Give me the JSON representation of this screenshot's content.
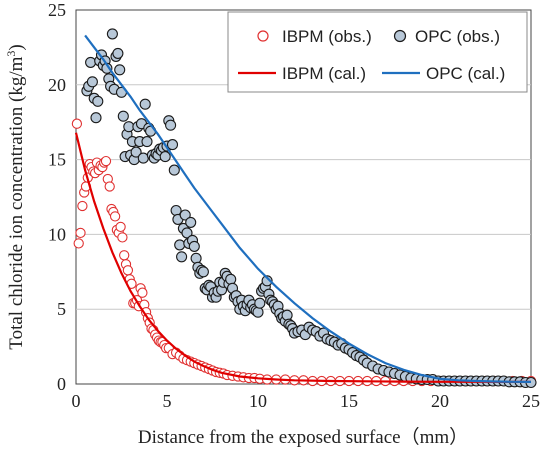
{
  "chart_data": {
    "type": "scatter",
    "xlabel": "Distance from the exposed surface（mm）",
    "ylabel": "Total chloride ion concentration (kg/m",
    "ylabel_sup": "3",
    "ylabel_end": ")",
    "xlim": [
      0,
      25
    ],
    "ylim": [
      0,
      25
    ],
    "xticks": [
      "0",
      "5",
      "10",
      "15",
      "20",
      "25"
    ],
    "yticks": [
      "0",
      "5",
      "10",
      "15",
      "20",
      "25"
    ],
    "grid": "horizontal",
    "legend_position": "top-right",
    "legend": {
      "ibpm_obs": "IBPM (obs.)",
      "opc_obs": "OPC (obs.)",
      "ibpm_cal": "IBPM (cal.)",
      "opc_cal": "OPC (cal.)"
    },
    "colors": {
      "ibpm_obs": "#e03030",
      "opc_obs_fill": "#b8c8d8",
      "opc_obs_edge": "#1a1a1a",
      "ibpm_cal": "#e00000",
      "opc_cal": "#1f6fbf"
    },
    "series": [
      {
        "name": "IBPM (obs.)",
        "kind": "scatter",
        "x": [
          0.05,
          0.15,
          0.25,
          0.35,
          0.45,
          0.55,
          0.65,
          0.75,
          0.85,
          0.95,
          1.05,
          1.15,
          1.25,
          1.35,
          1.45,
          1.55,
          1.65,
          1.75,
          1.85,
          1.95,
          2.05,
          2.15,
          2.25,
          2.35,
          2.45,
          2.55,
          2.65,
          2.75,
          2.85,
          2.95,
          3.05,
          3.15,
          3.25,
          3.35,
          3.45,
          3.55,
          3.65,
          3.75,
          3.85,
          3.95,
          4.05,
          4.15,
          4.25,
          4.35,
          4.45,
          4.55,
          4.65,
          4.75,
          4.85,
          4.95,
          5.1,
          5.3,
          5.5,
          5.7,
          5.9,
          6.1,
          6.3,
          6.5,
          6.7,
          6.9,
          7.1,
          7.3,
          7.5,
          7.7,
          7.9,
          8.1,
          8.3,
          8.6,
          8.9,
          9.2,
          9.5,
          9.8,
          10.1,
          10.5,
          11,
          11.5,
          12,
          12.5,
          13,
          13.5,
          14,
          14.5,
          15,
          15.5,
          16,
          16.5,
          17,
          17.5,
          18,
          18.5,
          19,
          19.5,
          20,
          20.5,
          21,
          21.5,
          22,
          22.5,
          23,
          23.5,
          24,
          24.5,
          25
        ],
        "y": [
          17.4,
          9.4,
          10.1,
          11.9,
          12.8,
          13.2,
          13.8,
          14.7,
          14.5,
          14.2,
          14.1,
          14.8,
          14.3,
          14.6,
          14.5,
          14.8,
          14.9,
          13.7,
          13.2,
          11.7,
          11.5,
          11.2,
          10.3,
          10.1,
          10.5,
          9.8,
          8.6,
          8.0,
          7.6,
          7.0,
          6.7,
          5.4,
          5.4,
          5.6,
          5.2,
          6.4,
          6.1,
          5.3,
          4.8,
          4.4,
          4.1,
          3.7,
          3.6,
          3.3,
          3.1,
          2.9,
          2.8,
          2.8,
          2.6,
          2.4,
          2.4,
          2.0,
          2.1,
          1.9,
          1.7,
          1.6,
          1.5,
          1.4,
          1.3,
          1.2,
          1.1,
          1.0,
          0.9,
          0.8,
          0.75,
          0.7,
          0.6,
          0.55,
          0.5,
          0.45,
          0.4,
          0.4,
          0.35,
          0.3,
          0.3,
          0.3,
          0.25,
          0.25,
          0.2,
          0.2,
          0.2,
          0.2,
          0.2,
          0.2,
          0.2,
          0.2,
          0.2,
          0.2,
          0.2,
          0.2,
          0.2,
          0.2,
          0.2,
          0.2,
          0.2,
          0.2,
          0.2,
          0.2,
          0.2,
          0.2,
          0.2,
          0.2,
          0.2
        ]
      },
      {
        "name": "OPC (obs.)",
        "kind": "scatter",
        "x": [
          0.6,
          0.7,
          0.8,
          0.9,
          1.0,
          1.1,
          1.2,
          1.3,
          1.4,
          1.5,
          1.6,
          1.7,
          1.8,
          1.9,
          2.0,
          2.1,
          2.2,
          2.3,
          2.4,
          2.5,
          2.6,
          2.7,
          2.8,
          2.9,
          3.0,
          3.1,
          3.2,
          3.3,
          3.4,
          3.5,
          3.6,
          3.7,
          3.8,
          3.9,
          4.0,
          4.1,
          4.2,
          4.3,
          4.4,
          4.5,
          4.6,
          4.7,
          4.8,
          4.9,
          5.0,
          5.1,
          5.2,
          5.3,
          5.4,
          5.5,
          5.6,
          5.7,
          5.8,
          5.9,
          6.0,
          6.1,
          6.2,
          6.3,
          6.4,
          6.5,
          6.6,
          6.7,
          6.8,
          6.9,
          7.0,
          7.1,
          7.2,
          7.3,
          7.4,
          7.5,
          7.6,
          7.7,
          7.8,
          7.9,
          8.0,
          8.1,
          8.2,
          8.3,
          8.4,
          8.5,
          8.6,
          8.7,
          8.8,
          8.9,
          9.0,
          9.1,
          9.2,
          9.3,
          9.4,
          9.5,
          9.6,
          9.7,
          9.8,
          9.9,
          10.0,
          10.1,
          10.2,
          10.3,
          10.4,
          10.5,
          10.6,
          10.7,
          10.8,
          10.9,
          11.0,
          11.1,
          11.2,
          11.3,
          11.4,
          11.5,
          11.6,
          11.7,
          11.8,
          11.9,
          12.0,
          12.2,
          12.4,
          12.6,
          12.8,
          13.0,
          13.2,
          13.4,
          13.6,
          13.8,
          14.0,
          14.2,
          14.4,
          14.6,
          14.8,
          15.0,
          15.2,
          15.4,
          15.6,
          15.8,
          16.0,
          16.3,
          16.6,
          16.9,
          17.2,
          17.5,
          17.8,
          18.1,
          18.4,
          18.7,
          19.0,
          19.3,
          19.6,
          19.9,
          20.2,
          20.5,
          20.8,
          21.1,
          21.4,
          21.7,
          22.0,
          22.3,
          22.6,
          22.9,
          23.2,
          23.5,
          23.8,
          24.1,
          24.4,
          24.7,
          25.0
        ],
        "y": [
          19.6,
          19.9,
          21.5,
          20.2,
          19.1,
          17.8,
          18.9,
          21.6,
          22.0,
          21.3,
          21.6,
          21.1,
          20.4,
          19.9,
          23.4,
          19.7,
          21.9,
          22.1,
          21.0,
          19.5,
          17.9,
          15.2,
          16.7,
          17.2,
          15.3,
          16.2,
          15.0,
          15.5,
          17.2,
          16.2,
          17.4,
          15.1,
          18.7,
          16.2,
          17.1,
          16.9,
          15.3,
          15.1,
          15.4,
          15.3,
          15.7,
          15.6,
          15.8,
          15.2,
          15.9,
          17.6,
          17.3,
          16.0,
          14.3,
          11.6,
          11.0,
          9.3,
          8.5,
          10.4,
          11.3,
          10.1,
          9.4,
          10.8,
          9.6,
          9.2,
          8.4,
          7.8,
          7.4,
          7.6,
          7.5,
          6.4,
          6.3,
          6.6,
          6.5,
          5.8,
          6.1,
          5.8,
          6.2,
          6.8,
          6.3,
          6.8,
          7.4,
          7.2,
          6.7,
          7.0,
          6.4,
          5.8,
          5.9,
          5.5,
          5.0,
          5.6,
          5.2,
          4.9,
          5.3,
          5.6,
          5.1,
          5.3,
          5.0,
          4.9,
          4.8,
          5.4,
          6.2,
          6.4,
          6.5,
          6.9,
          6.0,
          5.6,
          5.5,
          5.3,
          5.0,
          5.2,
          4.7,
          4.4,
          4.5,
          4.2,
          4.6,
          4.0,
          3.9,
          3.7,
          3.4,
          3.5,
          3.6,
          3.3,
          3.8,
          3.6,
          3.5,
          3.2,
          3.4,
          3.0,
          2.9,
          2.8,
          2.6,
          2.7,
          2.4,
          2.3,
          2.1,
          1.9,
          1.8,
          1.6,
          1.4,
          1.2,
          1.0,
          0.9,
          0.8,
          0.7,
          0.6,
          0.5,
          0.4,
          0.35,
          0.3,
          0.3,
          0.3,
          0.2,
          0.2,
          0.2,
          0.2,
          0.2,
          0.2,
          0.2,
          0.2,
          0.2,
          0.2,
          0.2,
          0.2,
          0.2,
          0.15,
          0.15,
          0.15,
          0.1,
          0.1
        ]
      },
      {
        "name": "IBPM (cal.)",
        "kind": "line",
        "x": [
          0,
          0.5,
          1,
          1.5,
          2,
          2.5,
          3,
          3.5,
          4,
          4.5,
          5,
          5.5,
          6,
          6.5,
          7,
          7.5,
          8,
          9,
          10,
          11,
          12,
          14,
          16,
          18,
          20,
          22,
          25
        ],
        "y": [
          16.8,
          14.3,
          12.2,
          10.4,
          8.8,
          7.4,
          6.2,
          5.2,
          4.3,
          3.55,
          2.9,
          2.35,
          1.9,
          1.5,
          1.2,
          0.95,
          0.75,
          0.5,
          0.38,
          0.3,
          0.25,
          0.2,
          0.18,
          0.16,
          0.15,
          0.15,
          0.14
        ]
      },
      {
        "name": "OPC (cal.)",
        "kind": "line",
        "x": [
          0.5,
          1,
          1.5,
          2,
          2.5,
          3,
          3.5,
          4,
          4.5,
          5,
          5.5,
          6,
          6.5,
          7,
          7.5,
          8,
          8.5,
          9,
          9.5,
          10,
          11,
          12,
          13,
          14,
          15,
          16,
          17,
          18,
          19,
          20,
          21,
          22,
          23,
          24,
          25
        ],
        "y": [
          23.3,
          22.5,
          21.7,
          20.8,
          20.0,
          19.2,
          18.3,
          17.5,
          16.7,
          15.8,
          14.9,
          14.0,
          13.1,
          12.3,
          11.5,
          10.7,
          9.9,
          9.1,
          8.4,
          7.7,
          6.5,
          5.4,
          4.4,
          3.5,
          2.7,
          2.0,
          1.4,
          0.95,
          0.6,
          0.35,
          0.25,
          0.2,
          0.17,
          0.15,
          0.14
        ]
      }
    ]
  }
}
